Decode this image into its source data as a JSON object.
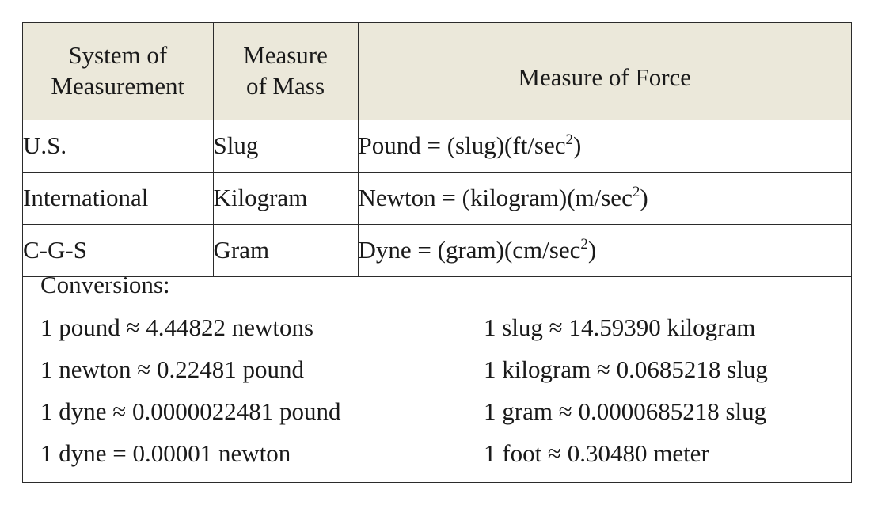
{
  "table": {
    "headers": {
      "system": [
        "System of",
        "Measurement"
      ],
      "mass": [
        "Measure",
        "of Mass"
      ],
      "force": "Measure of Force"
    },
    "rows": [
      {
        "system": "U.S.",
        "mass": "Slug",
        "force_prefix": "Pound = (slug)(ft/sec",
        "force_exp": "2",
        "force_suffix": ")"
      },
      {
        "system": "International",
        "mass": "Kilogram",
        "force_prefix": "Newton = (kilogram)(m/sec",
        "force_exp": "2",
        "force_suffix": ")"
      },
      {
        "system": "C-G-S",
        "mass": "Gram",
        "force_prefix": "Dyne = (gram)(cm/sec",
        "force_exp": "2",
        "force_suffix": ")"
      }
    ]
  },
  "conversions": {
    "title": "Conversions:",
    "left": [
      "1 pound ≈ 4.44822 newtons",
      "1 newton ≈ 0.22481 pound",
      "1 dyne ≈ 0.0000022481 pound",
      "1 dyne = 0.00001 newton"
    ],
    "right": [
      "1 slug ≈ 14.59390 kilogram",
      "1 kilogram ≈ 0.0685218 slug",
      "1 gram ≈ 0.0000685218 slug",
      "1 foot ≈ 0.30480 meter"
    ]
  },
  "colors": {
    "header_background": "#ebe8da",
    "border": "#2b2b2b",
    "text": "#1a1a1a"
  }
}
